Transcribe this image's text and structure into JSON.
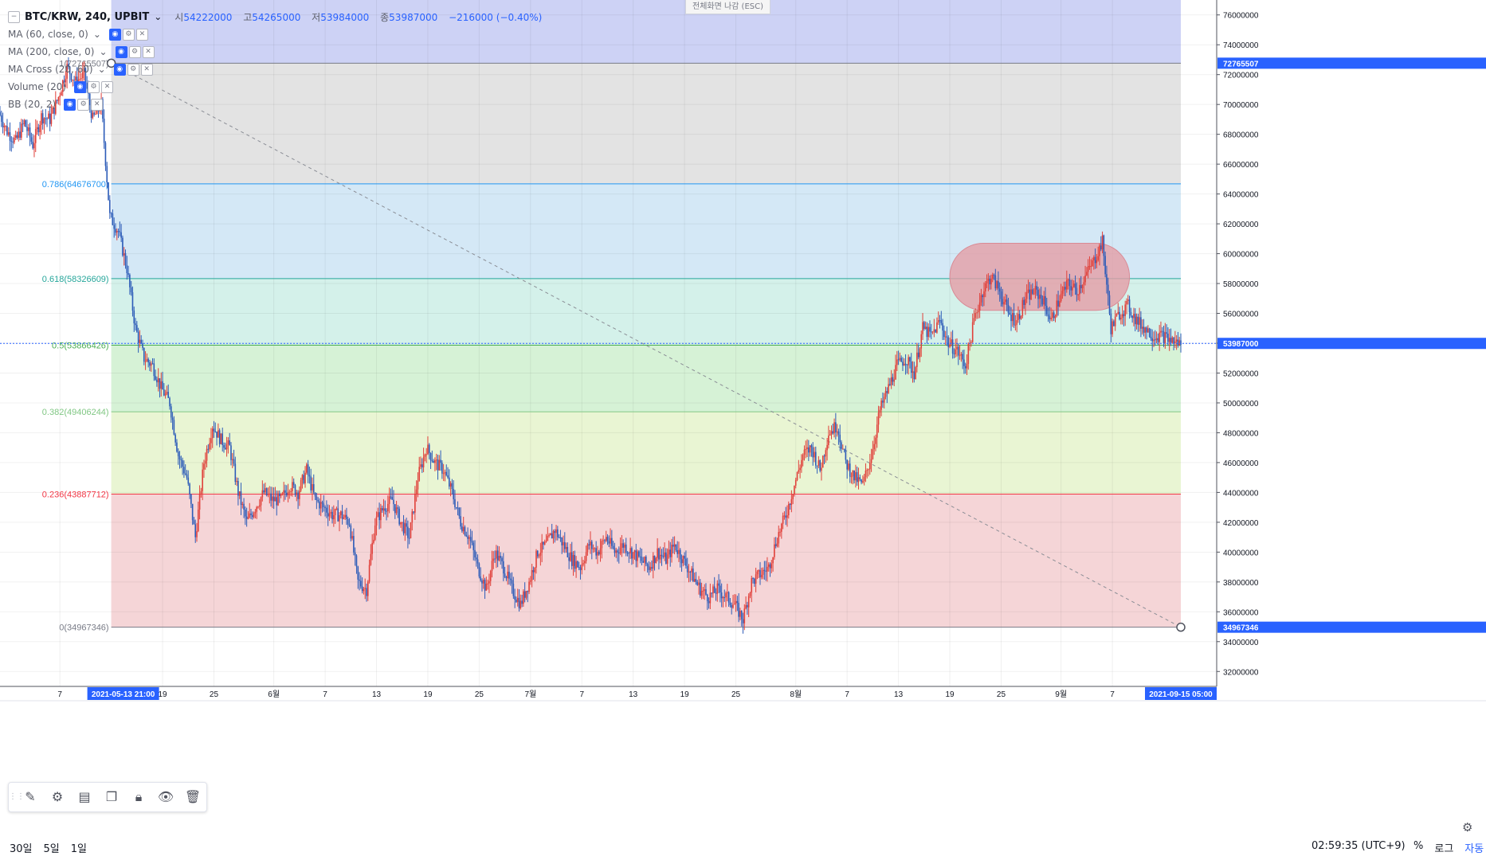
{
  "header": {
    "symbol": "BTC/KRW, 240, UPBIT",
    "open_label": "시",
    "open": "54222000",
    "high_label": "고",
    "high": "54265000",
    "low_label": "저",
    "low": "53984000",
    "close_label": "종",
    "close": "53987000",
    "change": "−216000 (−0.40%)"
  },
  "indicators": [
    {
      "label": "MA (60, close, 0)"
    },
    {
      "label": "MA (200, close, 0)"
    },
    {
      "label": "MA Cross (20, 60)"
    },
    {
      "label": "Volume (20)"
    },
    {
      "label": "BB (20, 2)"
    }
  ],
  "esc_button": "전체화면 나감 (ESC)",
  "toolbar": {
    "handle": "⋮⋮",
    "icons": [
      "pencil-icon",
      "gear-icon",
      "layers-icon",
      "copy-icon",
      "lock-icon",
      "eye-icon",
      "trash-icon"
    ]
  },
  "bottom_bar": {
    "ranges": [
      "30일",
      "5일",
      "1일"
    ],
    "clock": "02:59:35 (UTC+9)",
    "percent": "%",
    "log": "로그",
    "auto": "자동"
  },
  "chart_data": {
    "type": "candlestick",
    "title": "BTC/KRW, 240, UPBIT",
    "x_range": [
      "2021-04-30",
      "2021-09-15"
    ],
    "ylim": [
      31000000,
      77000000
    ],
    "y_ticks": [
      32000000,
      34000000,
      36000000,
      38000000,
      40000000,
      42000000,
      44000000,
      46000000,
      48000000,
      50000000,
      52000000,
      54000000,
      56000000,
      58000000,
      60000000,
      62000000,
      64000000,
      66000000,
      68000000,
      70000000,
      72000000,
      74000000,
      76000000
    ],
    "y_tick_labels": [
      "32000000",
      "34000000",
      "36000000",
      "38000000",
      "40000000",
      "42000000",
      "44000000",
      "46000000",
      "48000000",
      "50000000",
      "52000000",
      "54000000",
      "56000000",
      "58000000",
      "60000000",
      "62000000",
      "64000000",
      "66000000",
      "68000000",
      "70000000",
      "72000000",
      "74000000",
      "76000000"
    ],
    "x_ticks": [
      {
        "label": "7",
        "date": "2021-05-07"
      },
      {
        "label": "19",
        "date": "2021-05-19"
      },
      {
        "label": "25",
        "date": "2021-05-25"
      },
      {
        "label": "6월",
        "date": "2021-06-01"
      },
      {
        "label": "7",
        "date": "2021-06-07"
      },
      {
        "label": "13",
        "date": "2021-06-13"
      },
      {
        "label": "19",
        "date": "2021-06-19"
      },
      {
        "label": "25",
        "date": "2021-06-25"
      },
      {
        "label": "7월",
        "date": "2021-07-01"
      },
      {
        "label": "7",
        "date": "2021-07-07"
      },
      {
        "label": "13",
        "date": "2021-07-13"
      },
      {
        "label": "19",
        "date": "2021-07-19"
      },
      {
        "label": "25",
        "date": "2021-07-25"
      },
      {
        "label": "8월",
        "date": "2021-08-01"
      },
      {
        "label": "7",
        "date": "2021-08-07"
      },
      {
        "label": "13",
        "date": "2021-08-13"
      },
      {
        "label": "19",
        "date": "2021-08-19"
      },
      {
        "label": "25",
        "date": "2021-08-25"
      },
      {
        "label": "9월",
        "date": "2021-09-01"
      },
      {
        "label": "7",
        "date": "2021-09-07"
      }
    ],
    "x_highlight_left": {
      "label": "2021-05-13  21:00",
      "date": "2021-05-13"
    },
    "x_highlight_right": {
      "label": "2021-09-15  05:00",
      "date": "2021-09-15"
    },
    "price_badges": [
      {
        "label": "72765507",
        "value": 72765507,
        "color": "#2962ff"
      },
      {
        "label": "53987000",
        "value": 53987000,
        "color": "#2962ff"
      },
      {
        "label": "34967346",
        "value": 34967346,
        "color": "#2962ff"
      }
    ],
    "fibonacci": {
      "start_date": "2021-05-13",
      "end_date": "2021-09-15",
      "levels": [
        {
          "ratio": 1,
          "value": 72765507,
          "label": "1(72765507)",
          "color": "#787b86"
        },
        {
          "ratio": 0.786,
          "value": 64676700,
          "label": "0.786(64676700)",
          "color": "#2196f3"
        },
        {
          "ratio": 0.618,
          "value": 58326609,
          "label": "0.618(58326609)",
          "color": "#26a69a"
        },
        {
          "ratio": 0.5,
          "value": 53866426,
          "label": "0.5(53866426)",
          "color": "#4caf50"
        },
        {
          "ratio": 0.382,
          "value": 49406244,
          "label": "0.382(49406244)",
          "color": "#81c784"
        },
        {
          "ratio": 0.236,
          "value": 43887712,
          "label": "0.236(43887712)",
          "color": "#f23645"
        },
        {
          "ratio": 0,
          "value": 34967346,
          "label": "0(34967346)",
          "color": "#787b86"
        }
      ],
      "zones": [
        {
          "from": 72765507,
          "to": 77000000,
          "color": "#cdd2f5"
        },
        {
          "from": 64676700,
          "to": 72765507,
          "color": "#e3e3e3"
        },
        {
          "from": 58326609,
          "to": 64676700,
          "color": "#d4e8f6"
        },
        {
          "from": 53866426,
          "to": 58326609,
          "color": "#d4f1ea"
        },
        {
          "from": 49406244,
          "to": 53866426,
          "color": "#d6f2d6"
        },
        {
          "from": 43887712,
          "to": 49406244,
          "color": "#e9f5d3"
        },
        {
          "from": 34967346,
          "to": 43887712,
          "color": "#f5d5d7"
        }
      ]
    },
    "highlight_box": {
      "from_date": "2021-08-19",
      "to_date": "2021-09-09",
      "y_low": 56200000,
      "y_high": 60700000,
      "color": "#e39da6"
    },
    "current_price": 53987000,
    "colors": {
      "up": "#e0403a",
      "down": "#2d5cb8"
    },
    "price_path": [
      [
        "2021-04-30",
        69500000
      ],
      [
        "2021-05-01",
        68200000
      ],
      [
        "2021-05-02",
        67500000
      ],
      [
        "2021-05-03",
        68800000
      ],
      [
        "2021-05-04",
        67300000
      ],
      [
        "2021-05-05",
        69200000
      ],
      [
        "2021-05-06",
        69000000
      ],
      [
        "2021-05-07",
        70500000
      ],
      [
        "2021-05-08",
        72500000
      ],
      [
        "2021-05-09",
        71500000
      ],
      [
        "2021-05-10",
        72000000
      ],
      [
        "2021-05-11",
        69000000
      ],
      [
        "2021-05-12",
        70000000
      ],
      [
        "2021-05-13",
        62500000
      ],
      [
        "2021-05-14",
        61500000
      ],
      [
        "2021-05-15",
        59000000
      ],
      [
        "2021-05-16",
        55000000
      ],
      [
        "2021-05-17",
        53000000
      ],
      [
        "2021-05-18",
        52500000
      ],
      [
        "2021-05-19",
        51000000
      ],
      [
        "2021-05-20",
        50000000
      ],
      [
        "2021-05-21",
        46500000
      ],
      [
        "2021-05-22",
        45000000
      ],
      [
        "2021-05-23",
        41000000
      ],
      [
        "2021-05-24",
        46000000
      ],
      [
        "2021-05-25",
        48500000
      ],
      [
        "2021-05-26",
        47500000
      ],
      [
        "2021-05-27",
        47000000
      ],
      [
        "2021-05-28",
        44000000
      ],
      [
        "2021-05-29",
        42000000
      ],
      [
        "2021-05-30",
        43000000
      ],
      [
        "2021-05-31",
        44000000
      ],
      [
        "2021-06-01",
        43500000
      ],
      [
        "2021-06-02",
        43500000
      ],
      [
        "2021-06-03",
        44500000
      ],
      [
        "2021-06-04",
        44000000
      ],
      [
        "2021-06-05",
        45500000
      ],
      [
        "2021-06-06",
        43500000
      ],
      [
        "2021-06-07",
        43000000
      ],
      [
        "2021-06-08",
        42500000
      ],
      [
        "2021-06-09",
        42500000
      ],
      [
        "2021-06-10",
        42000000
      ],
      [
        "2021-06-11",
        38000000
      ],
      [
        "2021-06-12",
        37500000
      ],
      [
        "2021-06-13",
        42000000
      ],
      [
        "2021-06-14",
        43000000
      ],
      [
        "2021-06-15",
        43500000
      ],
      [
        "2021-06-16",
        42000000
      ],
      [
        "2021-06-17",
        41000000
      ],
      [
        "2021-06-18",
        45000000
      ],
      [
        "2021-06-19",
        47000000
      ],
      [
        "2021-06-20",
        46000000
      ],
      [
        "2021-06-21",
        45500000
      ],
      [
        "2021-06-22",
        44000000
      ],
      [
        "2021-06-23",
        42000000
      ],
      [
        "2021-06-24",
        41000000
      ],
      [
        "2021-06-25",
        39000000
      ],
      [
        "2021-06-26",
        37500000
      ],
      [
        "2021-06-27",
        40000000
      ],
      [
        "2021-06-28",
        39000000
      ],
      [
        "2021-06-29",
        37500000
      ],
      [
        "2021-06-30",
        36500000
      ],
      [
        "2021-07-01",
        38000000
      ],
      [
        "2021-07-02",
        40000000
      ],
      [
        "2021-07-03",
        40500000
      ],
      [
        "2021-07-04",
        41500000
      ],
      [
        "2021-07-05",
        40500000
      ],
      [
        "2021-07-06",
        39500000
      ],
      [
        "2021-07-07",
        39000000
      ],
      [
        "2021-07-08",
        40500000
      ],
      [
        "2021-07-09",
        40000000
      ],
      [
        "2021-07-10",
        41000000
      ],
      [
        "2021-07-11",
        40000000
      ],
      [
        "2021-07-12",
        40500000
      ],
      [
        "2021-07-13",
        40000000
      ],
      [
        "2021-07-14",
        39500000
      ],
      [
        "2021-07-15",
        39000000
      ],
      [
        "2021-07-16",
        40000000
      ],
      [
        "2021-07-17",
        39500000
      ],
      [
        "2021-07-18",
        40500000
      ],
      [
        "2021-07-19",
        39500000
      ],
      [
        "2021-07-20",
        38500000
      ],
      [
        "2021-07-21",
        37500000
      ],
      [
        "2021-07-22",
        37000000
      ],
      [
        "2021-07-23",
        37500000
      ],
      [
        "2021-07-24",
        37000000
      ],
      [
        "2021-07-25",
        36500000
      ],
      [
        "2021-07-26",
        35500000
      ],
      [
        "2021-07-27",
        38000000
      ],
      [
        "2021-07-28",
        38500000
      ],
      [
        "2021-07-29",
        39000000
      ],
      [
        "2021-07-30",
        41000000
      ],
      [
        "2021-07-31",
        42500000
      ],
      [
        "2021-08-01",
        44500000
      ],
      [
        "2021-08-02",
        46500000
      ],
      [
        "2021-08-03",
        47000000
      ],
      [
        "2021-08-04",
        45500000
      ],
      [
        "2021-08-05",
        48000000
      ],
      [
        "2021-08-06",
        48500000
      ],
      [
        "2021-08-07",
        46000000
      ],
      [
        "2021-08-08",
        45000000
      ],
      [
        "2021-08-09",
        44500000
      ],
      [
        "2021-08-10",
        46500000
      ],
      [
        "2021-08-11",
        49500000
      ],
      [
        "2021-08-12",
        51000000
      ],
      [
        "2021-08-13",
        52500000
      ],
      [
        "2021-08-14",
        53000000
      ],
      [
        "2021-08-15",
        52000000
      ],
      [
        "2021-08-16",
        55000000
      ],
      [
        "2021-08-17",
        54500000
      ],
      [
        "2021-08-18",
        55500000
      ],
      [
        "2021-08-19",
        54000000
      ],
      [
        "2021-08-20",
        53500000
      ],
      [
        "2021-08-21",
        52500000
      ],
      [
        "2021-08-22",
        55500000
      ],
      [
        "2021-08-23",
        57500000
      ],
      [
        "2021-08-24",
        58500000
      ],
      [
        "2021-08-25",
        57500000
      ],
      [
        "2021-08-26",
        56000000
      ],
      [
        "2021-08-27",
        55500000
      ],
      [
        "2021-08-28",
        57000000
      ],
      [
        "2021-08-29",
        57500000
      ],
      [
        "2021-08-30",
        57000000
      ],
      [
        "2021-08-31",
        55500000
      ],
      [
        "2021-09-01",
        57000000
      ],
      [
        "2021-09-02",
        58000000
      ],
      [
        "2021-09-03",
        57500000
      ],
      [
        "2021-09-04",
        58500000
      ],
      [
        "2021-09-05",
        59500000
      ],
      [
        "2021-09-06",
        60800000
      ],
      [
        "2021-09-07",
        55000000
      ],
      [
        "2021-09-08",
        56000000
      ],
      [
        "2021-09-09",
        56500000
      ],
      [
        "2021-09-10",
        55500000
      ],
      [
        "2021-09-11",
        55000000
      ],
      [
        "2021-09-12",
        54500000
      ],
      [
        "2021-09-13",
        54500000
      ],
      [
        "2021-09-14",
        54200000
      ],
      [
        "2021-09-15",
        53987000
      ]
    ]
  }
}
